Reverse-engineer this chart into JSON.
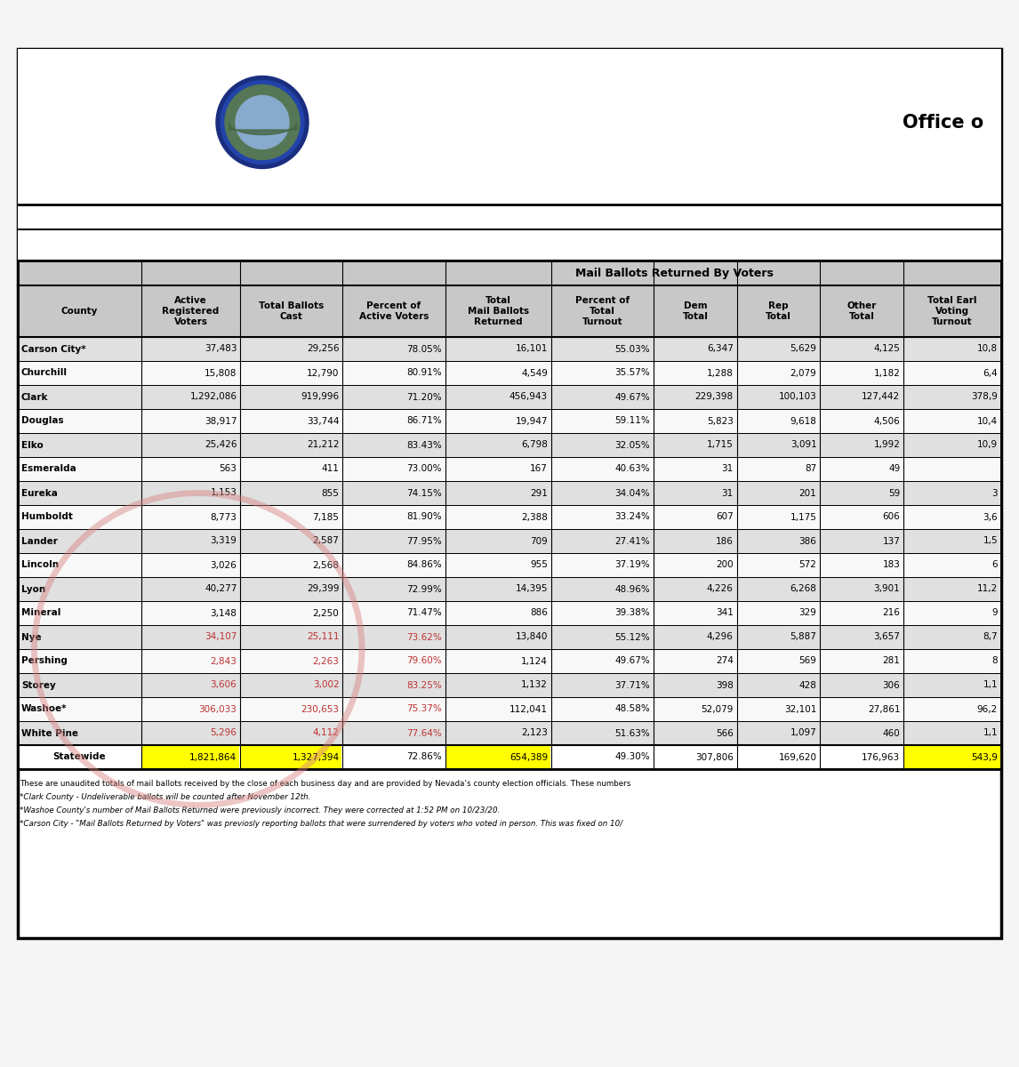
{
  "title_text": "Office o",
  "col_headers": [
    "County",
    "Active\nRegistered\nVoters",
    "Total Ballots\nCast",
    "Percent of\nActive Voters",
    "Total\nMail Ballots\nReturned",
    "Percent of\nTotal\nTurnout",
    "Dem\nTotal",
    "Rep\nTotal",
    "Other\nTotal",
    "Total Earl\nVoting\nTurnout"
  ],
  "mail_ballots_header": "Mail Ballots Returned By Voters",
  "rows": [
    [
      "Carson City*",
      "37,483",
      "29,256",
      "78.05%",
      "16,101",
      "55.03%",
      "6,347",
      "5,629",
      "4,125",
      "10,8"
    ],
    [
      "Churchill",
      "15,808",
      "12,790",
      "80.91%",
      "4,549",
      "35.57%",
      "1,288",
      "2,079",
      "1,182",
      "6,4"
    ],
    [
      "Clark",
      "1,292,086",
      "919,996",
      "71.20%",
      "456,943",
      "49.67%",
      "229,398",
      "100,103",
      "127,442",
      "378,9"
    ],
    [
      "Douglas",
      "38,917",
      "33,744",
      "86.71%",
      "19,947",
      "59.11%",
      "5,823",
      "9,618",
      "4,506",
      "10,4"
    ],
    [
      "Elko",
      "25,426",
      "21,212",
      "83.43%",
      "6,798",
      "32.05%",
      "1,715",
      "3,091",
      "1,992",
      "10,9"
    ],
    [
      "Esmeralda",
      "563",
      "411",
      "73.00%",
      "167",
      "40.63%",
      "31",
      "87",
      "49",
      ""
    ],
    [
      "Eureka",
      "1,153",
      "855",
      "74.15%",
      "291",
      "34.04%",
      "31",
      "201",
      "59",
      "3"
    ],
    [
      "Humboldt",
      "8,773",
      "7,185",
      "81.90%",
      "2,388",
      "33.24%",
      "607",
      "1,175",
      "606",
      "3,6"
    ],
    [
      "Lander",
      "3,319",
      "2,587",
      "77.95%",
      "709",
      "27.41%",
      "186",
      "386",
      "137",
      "1,5"
    ],
    [
      "Lincoln",
      "3,026",
      "2,568",
      "84.86%",
      "955",
      "37.19%",
      "200",
      "572",
      "183",
      "6"
    ],
    [
      "Lyon",
      "40,277",
      "29,399",
      "72.99%",
      "14,395",
      "48.96%",
      "4,226",
      "6,268",
      "3,901",
      "11,2"
    ],
    [
      "Mineral",
      "3,148",
      "2,250",
      "71.47%",
      "886",
      "39.38%",
      "341",
      "329",
      "216",
      "9"
    ],
    [
      "Nye",
      "34,107",
      "25,111",
      "73.62%",
      "13,840",
      "55.12%",
      "4,296",
      "5,887",
      "3,657",
      "8,7"
    ],
    [
      "Pershing",
      "2,843",
      "2,263",
      "79.60%",
      "1,124",
      "49.67%",
      "274",
      "569",
      "281",
      "8"
    ],
    [
      "Storey",
      "3,606",
      "3,002",
      "83.25%",
      "1,132",
      "37.71%",
      "398",
      "428",
      "306",
      "1,1"
    ],
    [
      "Washoe*",
      "306,033",
      "230,653",
      "75.37%",
      "112,041",
      "48.58%",
      "52,079",
      "32,101",
      "27,861",
      "96,2"
    ],
    [
      "White Pine",
      "5,296",
      "4,112",
      "77.64%",
      "2,123",
      "51.63%",
      "566",
      "1,097",
      "460",
      "1,1"
    ]
  ],
  "statewide_row": [
    "Statewide",
    "1,821,864",
    "1,327,394",
    "72.86%",
    "654,389",
    "49.30%",
    "307,806",
    "169,620",
    "176,963",
    "543,9"
  ],
  "footer_lines": [
    "These are unaudited totals of mail ballots received by the close of each business day and are provided by Nevada's county election officials. These numbers",
    "*Clark County - Undeliverable ballots will be counted after November 12th.",
    "*Washoe County's number of Mail Ballots Returned were previously incorrect. They were corrected at 1:52 PM on 10/23/20.",
    "*Carson City - \"Mail Ballots Returned by Voters\" was previosly reporting ballots that were surrendered by voters who voted in person. This was fixed on 10/"
  ],
  "bg_color": "#f5f5f5",
  "outer_border_color": "#000000",
  "header_bg": "#c8c8c8",
  "row_bg_odd": "#e0e0e0",
  "row_bg_even": "#f8f8f8",
  "yellow_color": "#ffff00",
  "statewide_yellow_cols": [
    1,
    2,
    4,
    9
  ],
  "circle_color_r": 0.85,
  "circle_color_g": 0.5,
  "circle_color_b": 0.5,
  "circle_alpha": 0.45,
  "circle_lw": 5,
  "red_text_rows": [
    12,
    13,
    14,
    15,
    16
  ],
  "red_text_cols": [
    1,
    2,
    3
  ],
  "red_text_color": "#c03030"
}
